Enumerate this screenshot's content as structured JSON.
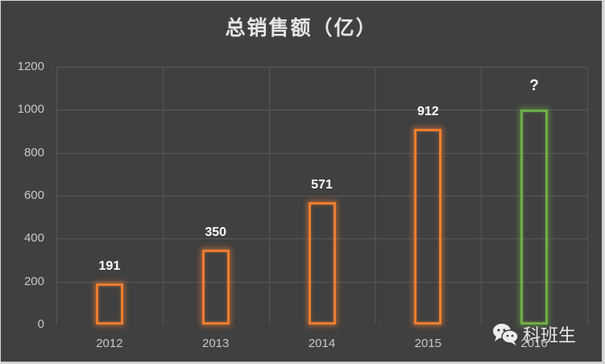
{
  "chart_data": {
    "type": "bar",
    "title": "总销售额（亿）",
    "categories": [
      "2012",
      "2013",
      "2014",
      "2015",
      "2016"
    ],
    "values": [
      191,
      350,
      571,
      912,
      1000
    ],
    "data_labels": [
      "191",
      "350",
      "571",
      "912",
      "?"
    ],
    "bar_colors": [
      "#ed7d31",
      "#ed7d31",
      "#ed7d31",
      "#ed7d31",
      "#70ad47"
    ],
    "bar_style": "outline-glow",
    "xlabel": "",
    "ylabel": "",
    "ylim": [
      0,
      1200
    ],
    "yticks": [
      "0",
      "200",
      "400",
      "600",
      "800",
      "1000",
      "1200"
    ],
    "grid": true,
    "legend": null,
    "notes": "2016 value is unknown, shown as '?' with a green placeholder bar at ~1000"
  },
  "watermark": {
    "icon": "wechat-icon",
    "text": "科班生"
  },
  "colors": {
    "background": "#404040",
    "grid": "#5a5a5a",
    "accent_orange": "#ed7d31",
    "accent_green": "#70ad47",
    "text": "#c8c8c8"
  }
}
